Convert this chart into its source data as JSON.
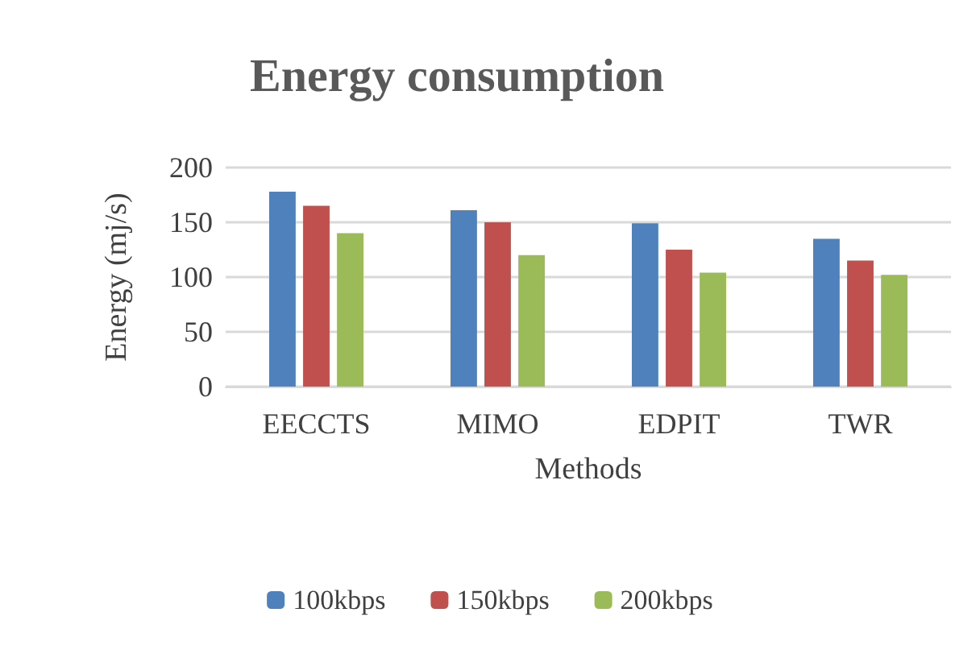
{
  "chart_data": {
    "type": "bar",
    "title": "Energy consumption",
    "xlabel": "Methods",
    "ylabel": "Energy (mj/s)",
    "categories": [
      "EECCTS",
      "MIMO",
      "EDPIT",
      "TWR"
    ],
    "series": [
      {
        "name": "100kbps",
        "color": "#4f81bd",
        "values": [
          178,
          161,
          149,
          135
        ]
      },
      {
        "name": "150kbps",
        "color": "#c0504d",
        "values": [
          165,
          150,
          125,
          115
        ]
      },
      {
        "name": "200kbps",
        "color": "#9bbb59",
        "values": [
          140,
          120,
          104,
          102
        ]
      }
    ],
    "ylim": [
      0,
      200
    ],
    "yticks": [
      0,
      50,
      100,
      150,
      200
    ],
    "grid": "y",
    "legend": "bottom"
  }
}
